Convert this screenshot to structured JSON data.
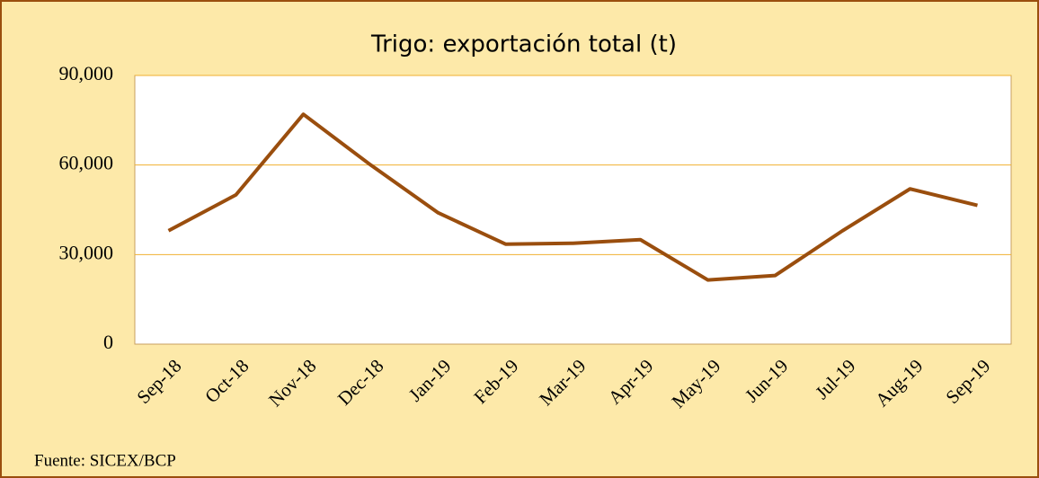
{
  "chart_data": {
    "type": "line",
    "title": "Trigo: exportación total (t)",
    "categories": [
      "Sep-18",
      "Oct-18",
      "Nov-18",
      "Dec-18",
      "Jan-19",
      "Feb-19",
      "Mar-19",
      "Apr-19",
      "May-19",
      "Jun-19",
      "Jul-19",
      "Aug-19",
      "Sep-19"
    ],
    "values": [
      38000,
      50000,
      77000,
      60000,
      44000,
      33500,
      33800,
      35000,
      21500,
      23000,
      38000,
      52000,
      46500
    ],
    "color": "#9a4e0e",
    "ylim": [
      0,
      90000
    ],
    "yticks": [
      0,
      {
        "value": 30000,
        "label": "30,000"
      },
      {
        "value": 60000,
        "label": "60,000"
      },
      {
        "value": 90000,
        "label": "90,000"
      }
    ],
    "grid": true,
    "source": "Fuente: SICEX/BCP"
  }
}
